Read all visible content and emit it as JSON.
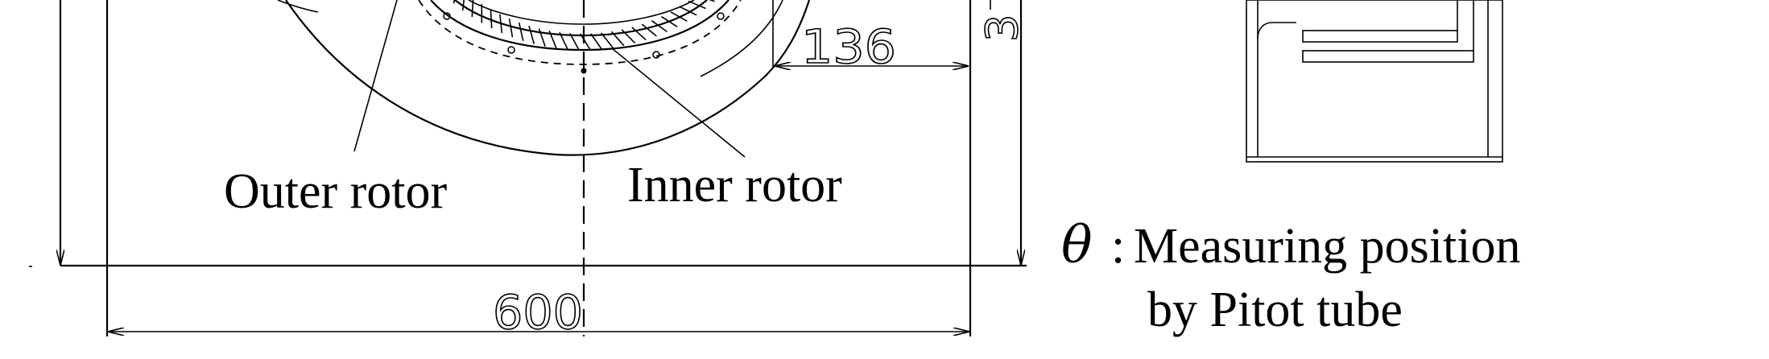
{
  "labels": {
    "outer_rotor": "Outer rotor",
    "inner_rotor": "Inner rotor",
    "dim_136": "136",
    "dim_600": "600",
    "dim_vertical_partial": "3",
    "theta_symbol": "θ",
    "theta_colon": ":",
    "measuring_line1": "Measuring position",
    "measuring_line2": "by Pitot tube"
  }
}
